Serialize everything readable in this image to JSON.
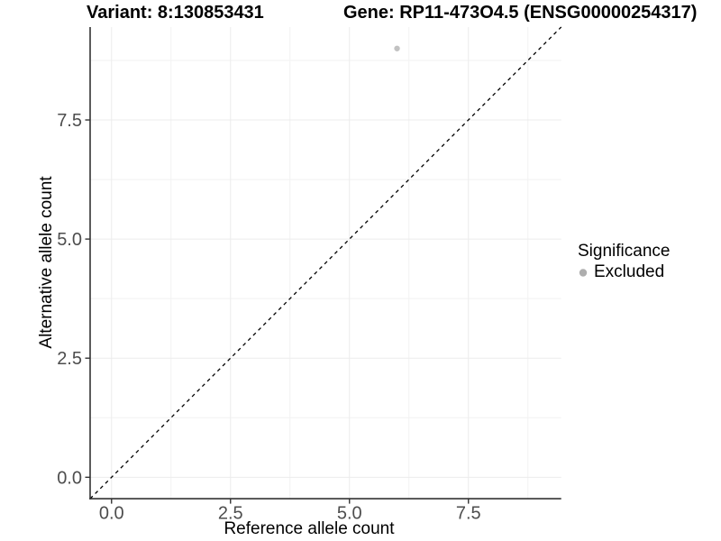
{
  "header": {
    "variant_title": "Variant: 8:130853431",
    "gene_title": "Gene: RP11-473O4.5 (ENSG00000254317)"
  },
  "chart_data": {
    "type": "scatter",
    "title": "",
    "xlabel": "Reference allele count",
    "ylabel": "Alternative allele count",
    "xlim": [
      -0.45,
      9.45
    ],
    "ylim": [
      -0.45,
      9.45
    ],
    "x_ticks": [
      0.0,
      2.5,
      5.0,
      7.5
    ],
    "y_ticks": [
      0.0,
      2.5,
      5.0,
      7.5
    ],
    "x_tick_labels": [
      "0.0",
      "2.5",
      "5.0",
      "7.5"
    ],
    "y_tick_labels": [
      "0.0",
      "2.5",
      "5.0",
      "7.5"
    ],
    "x_minor_ticks": [
      1.25,
      3.75,
      6.25,
      8.75
    ],
    "y_minor_ticks": [
      1.25,
      3.75,
      6.25,
      8.75
    ],
    "grid": true,
    "points": [
      {
        "x": 6,
        "y": 9,
        "series": "Excluded",
        "radius": 3.2
      }
    ],
    "identity_line": {
      "style": "dashed",
      "from": [
        -0.45,
        -0.45
      ],
      "to": [
        9.45,
        9.45
      ]
    },
    "legend": {
      "title": "Significance",
      "position": "right",
      "entries": [
        {
          "label": "Excluded",
          "marker": "circle"
        }
      ]
    }
  },
  "colors": {
    "grid_major": "#ececec",
    "grid_minor": "#f2f2f2",
    "axis_line": "#333333",
    "tick_mark": "#333333",
    "tick_label": "#4d4d4d",
    "identity_line": "#000000",
    "point": "#c2c2c2",
    "legend_marker": "#aeaeae"
  }
}
